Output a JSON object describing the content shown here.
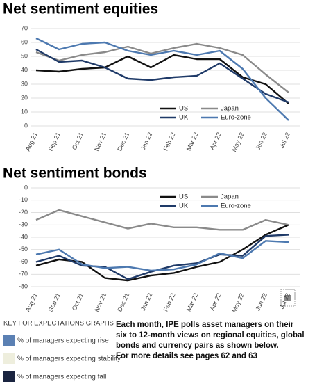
{
  "chart_data": [
    {
      "type": "line",
      "title": "Net sentiment equities",
      "categories": [
        "Aug 21",
        "Sep 21",
        "Oct 21",
        "Nov 21",
        "Dec 21",
        "Jan 22",
        "Feb 22",
        "Mar 22",
        "Apr 22",
        "May 22",
        "Jun 22",
        "Jul 22"
      ],
      "series": [
        {
          "name": "US",
          "color": "#111111",
          "values": [
            40,
            39,
            41,
            42,
            50,
            42,
            51,
            48,
            48,
            35,
            30,
            16
          ]
        },
        {
          "name": "Japan",
          "color": "#8a8a8a",
          "values": [
            53,
            47,
            51,
            53,
            57,
            52,
            56,
            59,
            56,
            51,
            37,
            24
          ]
        },
        {
          "name": "UK",
          "color": "#1f3a68",
          "values": [
            55,
            46,
            47,
            42,
            34,
            33,
            35,
            36,
            45,
            34,
            23,
            17
          ]
        },
        {
          "name": "Euro-zone",
          "color": "#4d79b0",
          "values": [
            63,
            55,
            59,
            60,
            54,
            51,
            54,
            51,
            54,
            41,
            20,
            4
          ]
        }
      ],
      "ylim": [
        0,
        70
      ],
      "yticks": [
        0,
        10,
        20,
        30,
        40,
        50,
        60,
        70
      ],
      "grid": true,
      "legend": "lower right"
    },
    {
      "type": "line",
      "title": "Net sentiment bonds",
      "categories": [
        "Aug 21",
        "Sep 21",
        "Oct 21",
        "Nov 21",
        "Dec 21",
        "Jan 22",
        "Feb 22",
        "Mar 22",
        "Apr 22",
        "May 22",
        "Jun 22",
        "Jul 22"
      ],
      "series": [
        {
          "name": "US",
          "color": "#111111",
          "values": [
            -63,
            -58,
            -60,
            -73,
            -75,
            -71,
            -69,
            -64,
            -60,
            -50,
            -38,
            -30
          ]
        },
        {
          "name": "Japan",
          "color": "#8a8a8a",
          "values": [
            -26,
            -18,
            -23,
            -28,
            -33,
            -29,
            -32,
            -32,
            -34,
            -34,
            -26,
            -30
          ]
        },
        {
          "name": "UK",
          "color": "#1f3a68",
          "values": [
            -60,
            -55,
            -63,
            -64,
            -74,
            -68,
            -63,
            -61,
            -54,
            -55,
            -39,
            -38
          ]
        },
        {
          "name": "Euro-zone",
          "color": "#4d79b0",
          "values": [
            -54,
            -50,
            -62,
            -65,
            -64,
            -67,
            -66,
            -62,
            -53,
            -57,
            -43,
            -44
          ]
        }
      ],
      "ylim": [
        -80,
        0
      ],
      "yticks": [
        -80,
        -70,
        -60,
        -50,
        -40,
        -30,
        -20,
        -10,
        0
      ],
      "grid": true,
      "legend": "upper right"
    }
  ],
  "key": {
    "title": "KEY FOR EXPECTATIONS GRAPHS",
    "items": [
      {
        "label": "% of managers expecting rise",
        "color": "#5b80b3"
      },
      {
        "label": "% of managers expecting stability",
        "color": "#eeeedd"
      },
      {
        "label": "% of managers expecting fall",
        "color": "#1a2440"
      }
    ]
  },
  "description": [
    "Each month, IPE polls asset managers on their",
    "six to 12-month views on regional equities, global",
    "bonds and currency pairs as shown below.",
    "For more details see pages 62 and 63"
  ]
}
